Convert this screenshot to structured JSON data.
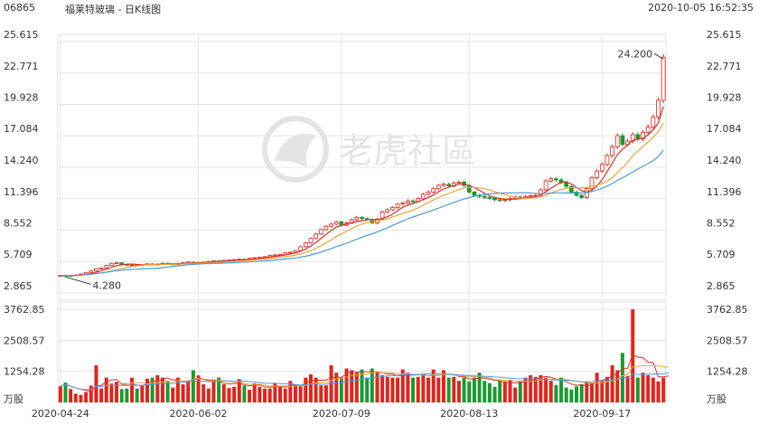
{
  "header": {
    "code": "06865",
    "name": "福莱特玻璃 - 日K线图",
    "datetime": "2020-10-05 16:52:35"
  },
  "watermark": {
    "text": "老虎社區"
  },
  "chart_data": [
    {
      "type": "candlestick",
      "price_ticks": [
        "25.615",
        "22.771",
        "19.928",
        "17.084",
        "14.240",
        "11.396",
        "8.552",
        "5.709",
        "2.865"
      ],
      "ylim": [
        2.865,
        25.615
      ],
      "x_tick_labels": [
        "2020-04-24",
        "2020-06-02",
        "2020-07-09",
        "2020-08-13",
        "2020-09-17"
      ],
      "x_tick_index": [
        0,
        27,
        55,
        80,
        106
      ],
      "annotations": {
        "max_label": "24.200",
        "min_label": "4.280"
      },
      "colors": {
        "up": "#e2231a",
        "down": "#1a9a2f",
        "ma5": "#d9312b",
        "ma10": "#f0a43a",
        "ma20": "#4a9be0",
        "grid": "#e6e6e6"
      },
      "closes": [
        4.45,
        4.4,
        4.45,
        4.5,
        4.58,
        4.72,
        4.85,
        5.05,
        5.12,
        5.35,
        5.55,
        5.6,
        5.45,
        5.4,
        5.4,
        5.38,
        5.42,
        5.5,
        5.45,
        5.48,
        5.55,
        5.5,
        5.5,
        5.52,
        5.6,
        5.65,
        5.6,
        5.62,
        5.65,
        5.7,
        5.78,
        5.75,
        5.8,
        5.85,
        5.88,
        5.92,
        5.88,
        6.0,
        6.05,
        6.1,
        6.15,
        6.25,
        6.3,
        6.35,
        6.5,
        6.55,
        6.7,
        7.05,
        7.4,
        7.8,
        8.2,
        8.6,
        8.9,
        9.1,
        9.3,
        9.0,
        9.2,
        9.5,
        9.7,
        9.6,
        9.5,
        9.2,
        9.55,
        10.2,
        10.4,
        10.6,
        10.9,
        11.0,
        11.2,
        11.15,
        11.4,
        11.8,
        12.0,
        12.3,
        12.6,
        12.7,
        12.55,
        12.8,
        12.9,
        12.6,
        12.0,
        11.7,
        11.6,
        11.5,
        11.45,
        11.3,
        11.25,
        11.3,
        11.4,
        11.55,
        11.5,
        11.6,
        11.65,
        11.7,
        12.2,
        13.0,
        13.2,
        13.1,
        12.85,
        12.5,
        12.0,
        11.7,
        11.5,
        12.3,
        13.3,
        13.9,
        14.5,
        15.3,
        16.1,
        17.1,
        16.3,
        16.6,
        17.2,
        16.8,
        17.4,
        17.9,
        18.8,
        20.3,
        24.2
      ],
      "volume_ticks": [
        "3762.85",
        "2508.57",
        "1254.28"
      ],
      "volume_unit": "万股",
      "volume_ylim": [
        0,
        3762.85
      ],
      "volumes": [
        650,
        800,
        540,
        350,
        300,
        420,
        680,
        1500,
        560,
        1000,
        760,
        830,
        540,
        560,
        1000,
        560,
        700,
        960,
        1000,
        1100,
        1000,
        870,
        600,
        1000,
        730,
        850,
        1300,
        1090,
        730,
        560,
        870,
        1000,
        730,
        580,
        630,
        940,
        680,
        510,
        770,
        630,
        560,
        560,
        770,
        630,
        560,
        870,
        720,
        650,
        1000,
        1130,
        1000,
        690,
        690,
        1500,
        1200,
        1000,
        1370,
        1300,
        1200,
        1330,
        1000,
        1370,
        1200,
        1100,
        1030,
        1000,
        1000,
        1330,
        1200,
        1000,
        1030,
        1100,
        1000,
        1330,
        1000,
        1300,
        1000,
        1030,
        870,
        1000,
        850,
        1000,
        1200,
        870,
        780,
        630,
        870,
        850,
        920,
        600,
        870,
        1000,
        1100,
        1030,
        1100,
        1000,
        870,
        700,
        1000,
        600,
        520,
        650,
        740,
        850,
        800,
        1200,
        870,
        1030,
        1500,
        1300,
        2000,
        1070,
        3762,
        1000,
        1200,
        1100,
        1000,
        850,
        1000,
        1400
      ]
    }
  ]
}
